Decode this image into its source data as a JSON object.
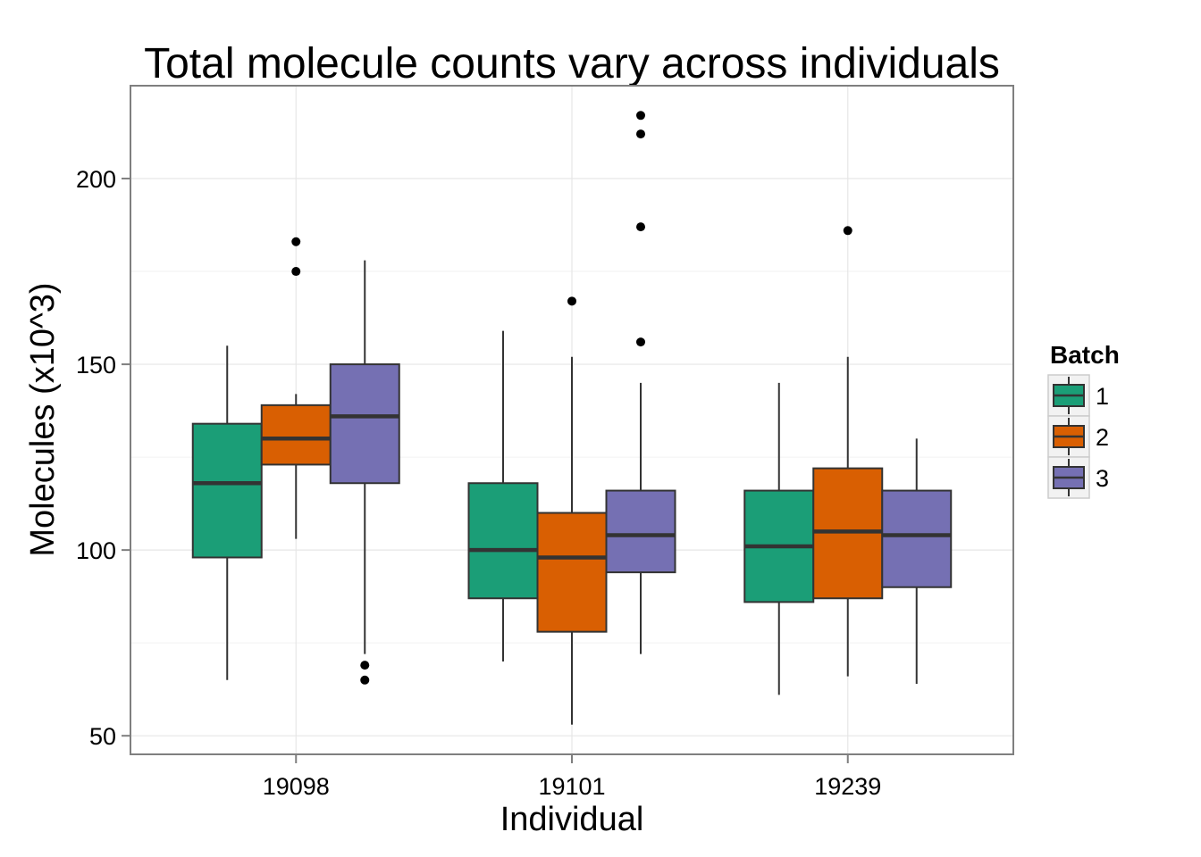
{
  "chart_data": {
    "type": "boxplot",
    "title": "Total molecule counts vary across individuals",
    "xlabel": "Individual",
    "ylabel": "Molecules (x10^3)",
    "ylim": [
      45,
      225
    ],
    "yticks": [
      50,
      100,
      150,
      200
    ],
    "categories": [
      "19098",
      "19101",
      "19239"
    ],
    "legend": {
      "title": "Batch",
      "position": "right"
    },
    "grid": true,
    "series": [
      {
        "name": "1",
        "color": "#1b9e77",
        "boxes": [
          {
            "lower_whisker": 65,
            "q1": 98,
            "median": 118,
            "q3": 134,
            "upper_whisker": 155,
            "outliers": []
          },
          {
            "lower_whisker": 70,
            "q1": 87,
            "median": 100,
            "q3": 118,
            "upper_whisker": 159,
            "outliers": []
          },
          {
            "lower_whisker": 61,
            "q1": 86,
            "median": 101,
            "q3": 116,
            "upper_whisker": 145,
            "outliers": []
          }
        ]
      },
      {
        "name": "2",
        "color": "#d95f02",
        "boxes": [
          {
            "lower_whisker": 103,
            "q1": 123,
            "median": 130,
            "q3": 139,
            "upper_whisker": 142,
            "outliers": [
              175,
              183
            ]
          },
          {
            "lower_whisker": 53,
            "q1": 78,
            "median": 98,
            "q3": 110,
            "upper_whisker": 152,
            "outliers": [
              167
            ]
          },
          {
            "lower_whisker": 66,
            "q1": 87,
            "median": 105,
            "q3": 122,
            "upper_whisker": 152,
            "outliers": [
              186
            ]
          }
        ]
      },
      {
        "name": "3",
        "color": "#7570b3",
        "boxes": [
          {
            "lower_whisker": 72,
            "q1": 118,
            "median": 136,
            "q3": 150,
            "upper_whisker": 178,
            "outliers": [
              65,
              69
            ]
          },
          {
            "lower_whisker": 72,
            "q1": 94,
            "median": 104,
            "q3": 116,
            "upper_whisker": 145,
            "outliers": [
              156,
              187,
              212,
              217
            ]
          },
          {
            "lower_whisker": 64,
            "q1": 90,
            "median": 104,
            "q3": 116,
            "upper_whisker": 130,
            "outliers": []
          }
        ]
      }
    ]
  }
}
